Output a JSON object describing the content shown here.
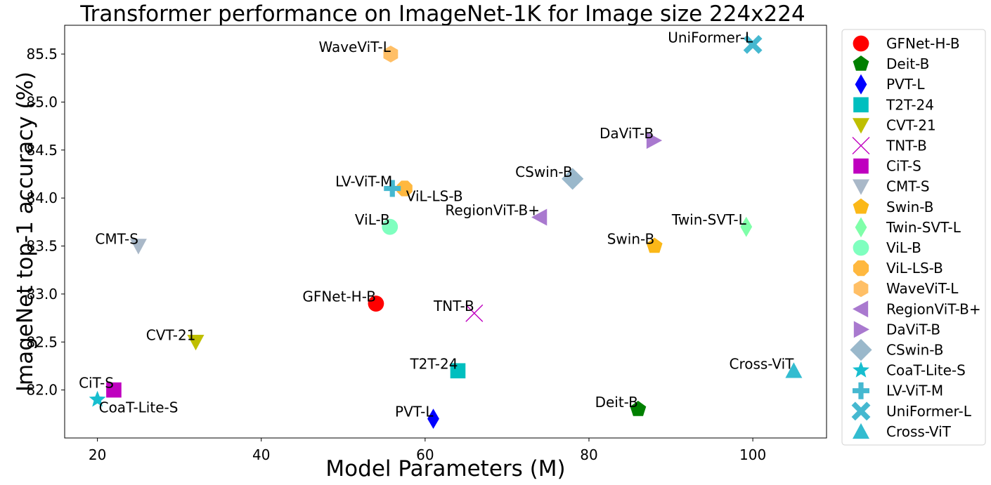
{
  "chart_data": {
    "type": "scatter",
    "title": "Transformer performance on ImageNet-1K for Image size 224x224",
    "xlabel": "Model Parameters (M)",
    "ylabel": "ImageNet top-1 accuracy (%)",
    "xlim": [
      16,
      109
    ],
    "ylim": [
      81.5,
      85.8
    ],
    "xticks": [
      20,
      40,
      60,
      80,
      100
    ],
    "yticks": [
      82.0,
      82.5,
      83.0,
      83.5,
      84.0,
      84.5,
      85.0,
      85.5
    ],
    "grid": false,
    "legend": "outside-right",
    "series": [
      {
        "name": "GFNet-H-B",
        "x": 54,
        "y": 82.9,
        "marker": "circle",
        "color": "#ff0000",
        "label_pos": "left"
      },
      {
        "name": "Deit-B",
        "x": 86,
        "y": 81.8,
        "marker": "pentagon",
        "color": "#008000",
        "label_pos": "left"
      },
      {
        "name": "PVT-L",
        "x": 61,
        "y": 81.7,
        "marker": "thin-diamond",
        "color": "#0000ff",
        "label_pos": "left"
      },
      {
        "name": "T2T-24",
        "x": 64,
        "y": 82.2,
        "marker": "square",
        "color": "#00bfbf",
        "label_pos": "left"
      },
      {
        "name": "CVT-21",
        "x": 32,
        "y": 82.5,
        "marker": "triangle-down",
        "color": "#bfbf00",
        "label_pos": "left"
      },
      {
        "name": "TNT-B",
        "x": 66,
        "y": 82.8,
        "marker": "x",
        "color": "#bf00bf",
        "label_pos": "left"
      },
      {
        "name": "CiT-S",
        "x": 22,
        "y": 82.0,
        "marker": "square",
        "color": "#bf00bf",
        "label_pos": "left"
      },
      {
        "name": "CMT-S",
        "x": 25,
        "y": 83.5,
        "marker": "triangle-down",
        "color": "#a9b8c8",
        "label_pos": "left"
      },
      {
        "name": "Swin-B",
        "x": 88,
        "y": 83.5,
        "marker": "pentagon",
        "color": "#fbb818",
        "label_pos": "left"
      },
      {
        "name": "Twin-SVT-L",
        "x": 99.2,
        "y": 83.7,
        "marker": "thin-diamond",
        "color": "#7fffa9",
        "label_pos": "left"
      },
      {
        "name": "ViL-B",
        "x": 55.7,
        "y": 83.7,
        "marker": "circle",
        "color": "#7fffbf",
        "label_pos": "left"
      },
      {
        "name": "ViL-LS-B",
        "x": 57.5,
        "y": 84.1,
        "marker": "octagon",
        "color": "#ffb83f",
        "label_pos": "right"
      },
      {
        "name": "WaveViT-L",
        "x": 55.8,
        "y": 85.5,
        "marker": "hexagon",
        "color": "#ffbf66",
        "label_pos": "left"
      },
      {
        "name": "RegionViT-B+",
        "x": 74,
        "y": 83.8,
        "marker": "triangle-left",
        "color": "#a979cf",
        "label_pos": "left"
      },
      {
        "name": "DaViT-B",
        "x": 87.9,
        "y": 84.6,
        "marker": "triangle-right",
        "color": "#a979cf",
        "label_pos": "left"
      },
      {
        "name": "CSwin-B",
        "x": 78,
        "y": 84.2,
        "marker": "diamond",
        "color": "#9ab8cb",
        "label_pos": "left"
      },
      {
        "name": "CoaT-Lite-S",
        "x": 20,
        "y": 81.9,
        "marker": "star",
        "color": "#17becf",
        "label_pos": "right"
      },
      {
        "name": "LV-ViT-M",
        "x": 56,
        "y": 84.1,
        "marker": "plus",
        "color": "#45b8d0",
        "label_pos": "left"
      },
      {
        "name": "UniFormer-L",
        "x": 100,
        "y": 85.6,
        "marker": "x-filled",
        "color": "#45b8d0",
        "label_pos": "left"
      },
      {
        "name": "Cross-ViT",
        "x": 105,
        "y": 82.2,
        "marker": "triangle-up",
        "color": "#33bcd0",
        "label_pos": "left"
      }
    ]
  }
}
